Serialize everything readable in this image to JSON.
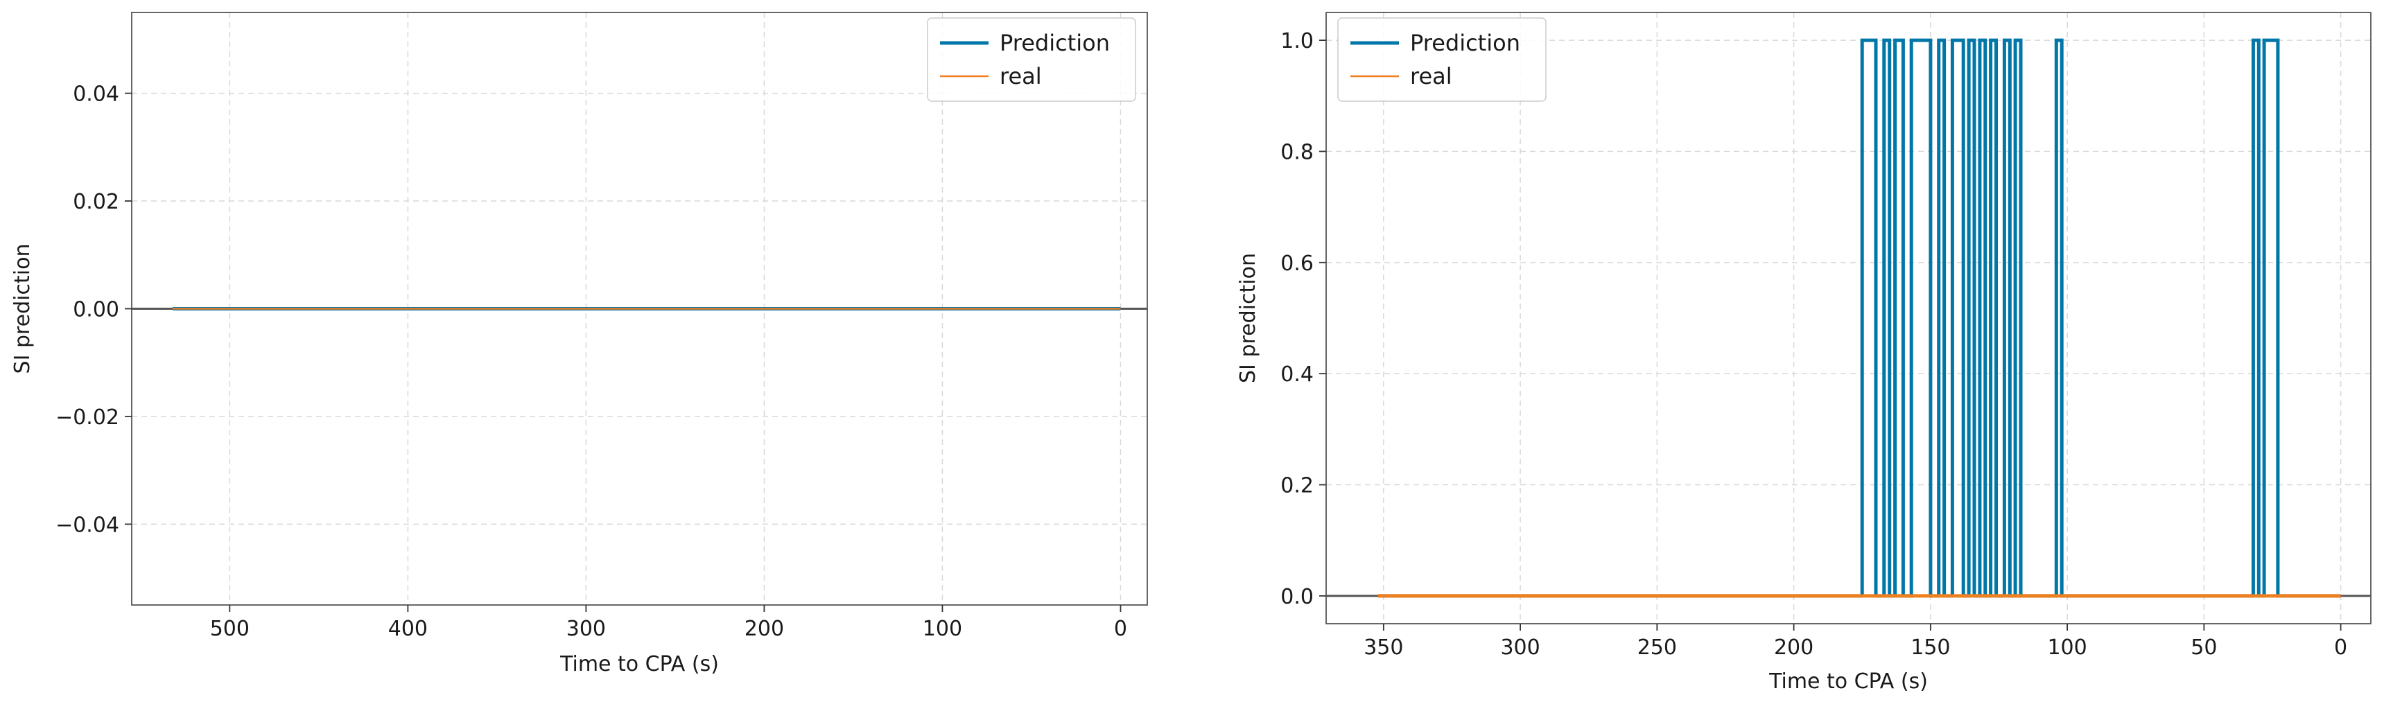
{
  "chart_data": [
    {
      "type": "line",
      "xlabel": "Time to CPA (s)",
      "ylabel": "SI prediction",
      "xlim": [
        555,
        -15
      ],
      "ylim": [
        -0.055,
        0.055
      ],
      "x_ticks": [
        500,
        400,
        300,
        200,
        100,
        0
      ],
      "x_tick_labels": [
        "500",
        "400",
        "300",
        "200",
        "100",
        "0"
      ],
      "y_ticks": [
        -0.04,
        -0.02,
        0.0,
        0.02,
        0.04
      ],
      "y_tick_labels": [
        "−0.04",
        "−0.02",
        "0.00",
        "0.02",
        "0.04"
      ],
      "grid": true,
      "legend_position": "top-right",
      "baseline_y": 0,
      "series": [
        {
          "name": "Prediction",
          "color": "#0077a8",
          "line_width": 5,
          "x": [
            532,
            0
          ],
          "y": [
            0,
            0
          ]
        },
        {
          "name": "real",
          "color": "#f07f1e",
          "line_width": 2.5,
          "x": [
            532,
            0
          ],
          "y": [
            0,
            0
          ]
        }
      ]
    },
    {
      "type": "line",
      "xlabel": "Time to CPA (s)",
      "ylabel": "SI prediction",
      "xlim": [
        371,
        -11
      ],
      "ylim": [
        -0.05,
        1.05
      ],
      "x_ticks": [
        350,
        300,
        250,
        200,
        150,
        100,
        50,
        0
      ],
      "x_tick_labels": [
        "350",
        "300",
        "250",
        "200",
        "150",
        "100",
        "50",
        "0"
      ],
      "y_ticks": [
        0.0,
        0.2,
        0.4,
        0.6,
        0.8,
        1.0
      ],
      "y_tick_labels": [
        "0.0",
        "0.2",
        "0.4",
        "0.6",
        "0.8",
        "1.0"
      ],
      "grid": true,
      "legend_position": "top-left",
      "baseline_y": 0,
      "series": [
        {
          "name": "Prediction",
          "color": "#0077a8",
          "line_width": 5,
          "x": [
            352,
            175,
            175,
            170,
            170,
            167,
            167,
            165,
            165,
            163,
            163,
            160,
            160,
            157,
            157,
            150,
            150,
            147,
            147,
            145,
            145,
            142,
            142,
            138,
            138,
            136,
            136,
            134,
            134,
            132,
            132,
            130,
            130,
            128,
            128,
            126,
            126,
            123,
            123,
            121,
            121,
            119,
            119,
            117,
            117,
            104,
            104,
            102,
            102,
            32,
            32,
            30,
            30,
            28,
            28,
            23,
            23,
            0
          ],
          "y": [
            0,
            0,
            1,
            1,
            0,
            0,
            1,
            1,
            0,
            0,
            1,
            1,
            0,
            0,
            1,
            1,
            0,
            0,
            1,
            1,
            0,
            0,
            1,
            1,
            0,
            0,
            1,
            1,
            0,
            0,
            1,
            1,
            0,
            0,
            1,
            1,
            0,
            0,
            1,
            1,
            0,
            0,
            1,
            1,
            0,
            0,
            1,
            1,
            0,
            0,
            1,
            1,
            0,
            0,
            1,
            1,
            0,
            0
          ]
        },
        {
          "name": "real",
          "color": "#f07f1e",
          "line_width": 5,
          "x": [
            352,
            0
          ],
          "y": [
            0,
            0
          ]
        }
      ]
    }
  ]
}
